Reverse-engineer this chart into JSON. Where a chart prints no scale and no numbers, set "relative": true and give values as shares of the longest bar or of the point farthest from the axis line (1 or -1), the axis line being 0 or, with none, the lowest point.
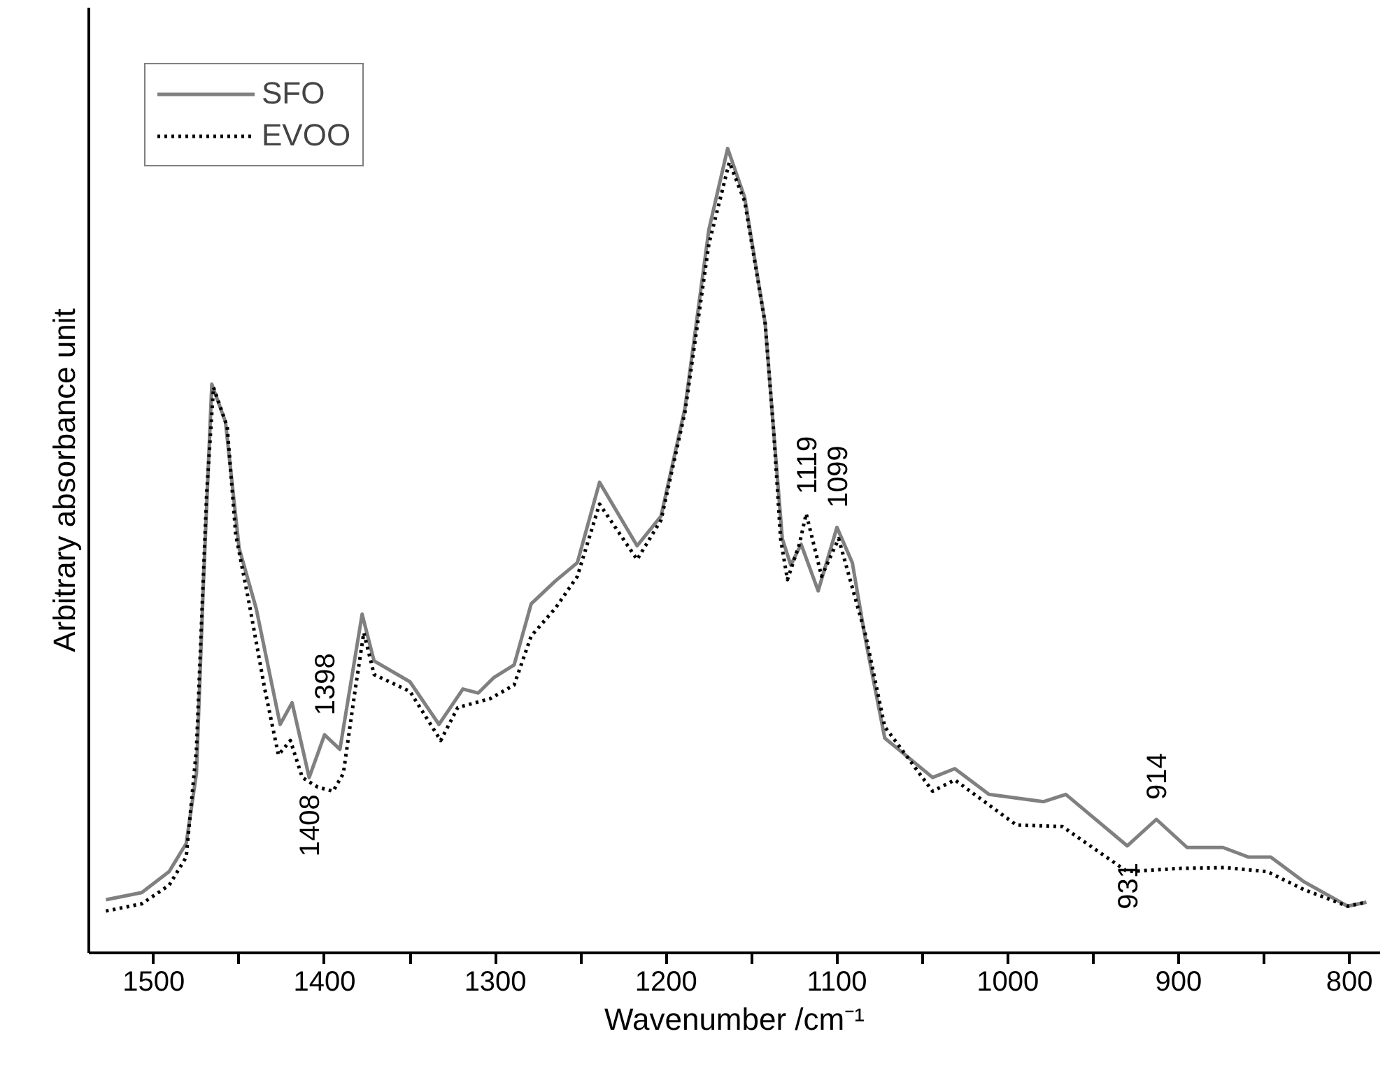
{
  "chart_data": {
    "type": "line",
    "relative": true,
    "xlabel": "Wavenumber /cm⁻¹",
    "ylabel": "Arbitrary absorbance unit",
    "xlim": [
      1538,
      782
    ],
    "xticks": [
      1500,
      {
        "value": 1450,
        "label": null
      },
      1400,
      {
        "value": 1350,
        "label": null
      },
      1300,
      {
        "value": 1250,
        "label": null
      },
      1200,
      {
        "value": 1150,
        "label": null
      },
      1100,
      {
        "value": 1050,
        "label": null
      },
      1000,
      {
        "value": 950,
        "label": null
      },
      900,
      {
        "value": 850,
        "label": null
      },
      800
    ],
    "legend": "top left",
    "grid": false,
    "series": [
      {
        "name": "SFO",
        "color": "#808080",
        "line_style": "solid",
        "x": [
          1528,
          1507,
          1491,
          1481,
          1475,
          1471,
          1466,
          1458,
          1450,
          1440,
          1426,
          1419,
          1409,
          1400,
          1391,
          1378,
          1371,
          1350,
          1333,
          1319,
          1310,
          1301,
          1289,
          1279,
          1265,
          1252,
          1239,
          1217,
          1203,
          1189,
          1175,
          1164,
          1154,
          1142,
          1137,
          1132,
          1127,
          1121,
          1111,
          1100,
          1091,
          1083,
          1072,
          1060,
          1044,
          1031,
          1011,
          979,
          966,
          930,
          913,
          895,
          874,
          859,
          846,
          827,
          801,
          790
        ],
        "values": [
          0.066,
          0.075,
          0.101,
          0.136,
          0.223,
          0.455,
          0.707,
          0.66,
          0.503,
          0.428,
          0.284,
          0.311,
          0.218,
          0.271,
          0.253,
          0.421,
          0.363,
          0.337,
          0.284,
          0.328,
          0.323,
          0.342,
          0.358,
          0.434,
          0.462,
          0.485,
          0.585,
          0.506,
          0.543,
          0.677,
          0.899,
          1.0,
          0.939,
          0.782,
          0.647,
          0.515,
          0.482,
          0.508,
          0.45,
          0.529,
          0.485,
          0.386,
          0.267,
          0.246,
          0.218,
          0.229,
          0.197,
          0.188,
          0.197,
          0.133,
          0.166,
          0.131,
          0.131,
          0.119,
          0.119,
          0.089,
          0.058,
          0.063
        ]
      },
      {
        "name": "EVOO",
        "color": "#000000",
        "line_style": "dotted",
        "x": [
          1528,
          1507,
          1491,
          1481,
          1475,
          1469,
          1465,
          1457,
          1452,
          1444,
          1435,
          1427,
          1420,
          1413,
          1404,
          1395,
          1389,
          1382,
          1377,
          1371,
          1350,
          1332,
          1322,
          1303,
          1289,
          1279,
          1265,
          1252,
          1239,
          1217,
          1203,
          1189,
          1175,
          1163,
          1154,
          1142,
          1137,
          1133,
          1129,
          1122,
          1118,
          1109,
          1099,
          1083,
          1072,
          1066,
          1044,
          1031,
          995,
          968,
          930,
          900,
          873,
          848,
          827,
          801,
          790
        ],
        "values": [
          0.052,
          0.061,
          0.084,
          0.119,
          0.253,
          0.572,
          0.703,
          0.654,
          0.52,
          0.433,
          0.328,
          0.246,
          0.264,
          0.218,
          0.206,
          0.201,
          0.223,
          0.328,
          0.398,
          0.346,
          0.325,
          0.264,
          0.305,
          0.316,
          0.333,
          0.394,
          0.428,
          0.468,
          0.558,
          0.489,
          0.538,
          0.672,
          0.881,
          0.983,
          0.934,
          0.782,
          0.647,
          0.515,
          0.464,
          0.508,
          0.546,
          0.468,
          0.515,
          0.393,
          0.281,
          0.264,
          0.201,
          0.215,
          0.159,
          0.157,
          0.101,
          0.105,
          0.106,
          0.101,
          0.079,
          0.058,
          0.063
        ]
      }
    ],
    "annotations": [
      {
        "text": "1408",
        "x": 1409,
        "y": 0.218
      },
      {
        "text": "1398",
        "x": 1400,
        "y": 0.271
      },
      {
        "text": "1119",
        "x": 1118,
        "y": 0.546
      },
      {
        "text": "1099",
        "x": 1100,
        "y": 0.529
      },
      {
        "text": "931",
        "x": 930,
        "y": 0.133
      },
      {
        "text": "914",
        "x": 913,
        "y": 0.166
      }
    ]
  }
}
